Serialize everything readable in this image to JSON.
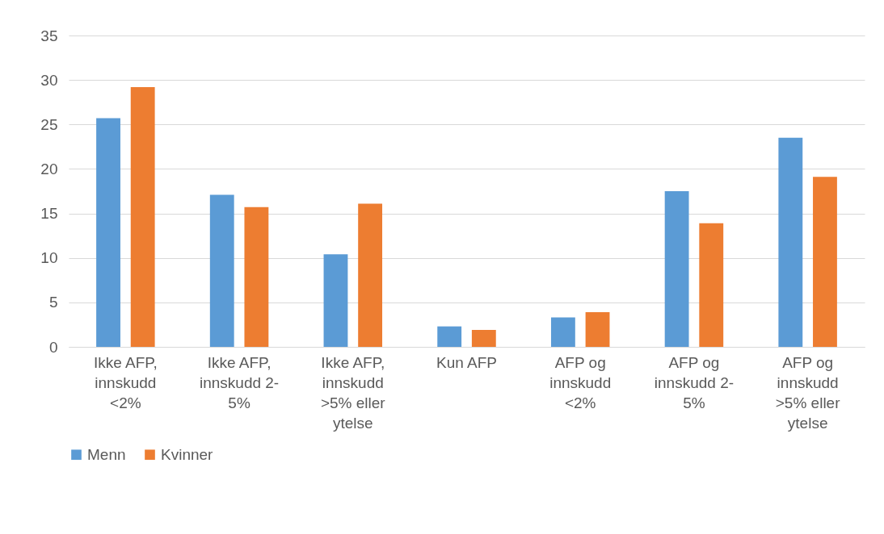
{
  "chart_data": {
    "type": "bar",
    "categories": [
      "Ikke AFP, innskudd <2%",
      "Ikke AFP, innskudd 2-5%",
      "Ikke AFP, innskudd >5% eller ytelse",
      "Kun AFP",
      "AFP og innskudd <2%",
      "AFP og innskudd 2-5%",
      "AFP og innskudd >5% eller ytelse"
    ],
    "series": [
      {
        "name": "Menn",
        "color": "#5b9bd5",
        "values": [
          25.7,
          17.1,
          10.4,
          2.3,
          3.3,
          17.5,
          23.5
        ]
      },
      {
        "name": "Kvinner",
        "color": "#ed7d31",
        "values": [
          29.2,
          15.7,
          16.1,
          1.9,
          3.9,
          13.9,
          19.1
        ]
      }
    ],
    "ylim": [
      0,
      35
    ],
    "yticks": [
      0,
      5,
      10,
      15,
      20,
      25,
      30,
      35
    ],
    "grid": "y",
    "legend": "bottom"
  }
}
